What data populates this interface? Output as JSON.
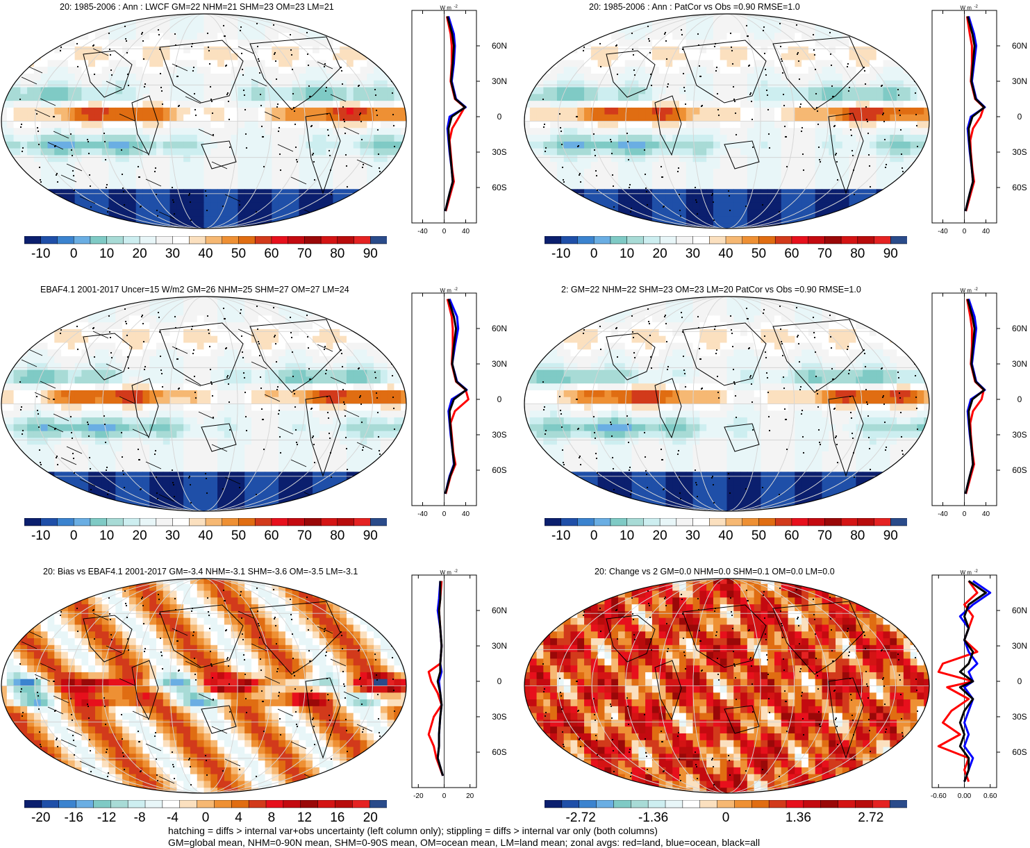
{
  "panels": [
    {
      "title": "20: 1985-2006 : Ann : LWCF GM=22 NHM=21 SHM=23 OM=23 LM=21",
      "variant": "clim",
      "hatch": true,
      "stipple": true
    },
    {
      "title": "20: 1985-2006 : Ann : PatCor vs Obs =0.90 RMSE=1.0",
      "variant": "clim",
      "hatch": false,
      "stipple": true
    },
    {
      "title": "EBAF4.1 2001-2017 Uncer=15 W/m2 GM=26 NHM=25 SHM=27 OM=27 LM=24",
      "variant": "clim",
      "hatch": true,
      "stipple": true
    },
    {
      "title": "2: GM=22 NHM=22 SHM=23 OM=23 LM=20 PatCor vs Obs =0.90 RMSE=1.0",
      "variant": "clim",
      "hatch": false,
      "stipple": true
    },
    {
      "title": "20: Bias vs EBAF4.1 2001-2017 GM=-3.4 NHM=-3.1 SHM=-3.6 OM=-3.5 LM=-3.1",
      "variant": "bias",
      "hatch": true,
      "stipple": true
    },
    {
      "title": "20: Change vs 2 GM=0.0 NHM=0.0 SHM=0.1 OM=0.0 LM=0.0",
      "variant": "change",
      "hatch": false,
      "stipple": true
    }
  ],
  "colorbars": [
    {
      "labels": [
        "-10",
        "0",
        "10",
        "20",
        "30",
        "40",
        "50",
        "60",
        "70",
        "80",
        "90"
      ]
    },
    {
      "labels": [
        "-10",
        "0",
        "10",
        "20",
        "30",
        "40",
        "50",
        "60",
        "70",
        "80",
        "90"
      ]
    },
    {
      "labels": [
        "-10",
        "0",
        "10",
        "20",
        "30",
        "40",
        "50",
        "60",
        "70",
        "80",
        "90"
      ]
    },
    {
      "labels": [
        "-10",
        "0",
        "10",
        "20",
        "30",
        "40",
        "50",
        "60",
        "70",
        "80",
        "90"
      ]
    },
    {
      "labels": [
        "-20",
        "-16",
        "-12",
        "-8",
        "-4",
        "0",
        "4",
        "8",
        "12",
        "16",
        "20"
      ]
    },
    {
      "labels": [
        "-2.72",
        "-1.36",
        "0",
        "1.36",
        "2.72"
      ]
    }
  ],
  "zonal_plots": [
    {
      "unit": "W m",
      "unit_exp": "-2",
      "xticks": [
        "-40",
        "0",
        "40"
      ],
      "xrange": [
        -60,
        60
      ],
      "lat_labels": [
        "60N",
        "30N",
        "0",
        "30S",
        "60S"
      ]
    },
    {
      "unit": "W m",
      "unit_exp": "-2",
      "xticks": [
        "-40",
        "0",
        "40"
      ],
      "xrange": [
        -60,
        60
      ],
      "lat_labels": [
        "60N",
        "30N",
        "0",
        "30S",
        "60S"
      ]
    },
    {
      "unit": "W m",
      "unit_exp": "-2",
      "xticks": [
        "-40",
        "0",
        "40"
      ],
      "xrange": [
        -60,
        60
      ],
      "lat_labels": [
        "60N",
        "30N",
        "0",
        "30S",
        "60S"
      ]
    },
    {
      "unit": "W m",
      "unit_exp": "-2",
      "xticks": [
        "-40",
        "0",
        "40"
      ],
      "xrange": [
        -60,
        60
      ],
      "lat_labels": [
        "60N",
        "30N",
        "0",
        "30S",
        "60S"
      ]
    },
    {
      "unit": "W m",
      "unit_exp": "-2",
      "xticks": [
        "-20",
        "0",
        "20"
      ],
      "xrange": [
        -25,
        25
      ],
      "lat_labels": [
        "60N",
        "30N",
        "0",
        "30S",
        "60S"
      ]
    },
    {
      "unit": "W m",
      "unit_exp": "-2",
      "xticks": [
        "-0.60",
        "0.00",
        "0.60"
      ],
      "xrange": [
        -0.75,
        0.75
      ],
      "lat_labels": [
        "60N",
        "30N",
        "0",
        "30S",
        "60S"
      ]
    }
  ],
  "chart_data": {
    "type": "heatmap",
    "zonal_mean_series": [
      {
        "panel": 0,
        "lat": [
          85,
          70,
          60,
          45,
          30,
          15,
          8,
          0,
          -10,
          -20,
          -30,
          -45,
          -55,
          -65,
          -80
        ],
        "land": [
          5,
          12,
          14,
          14,
          12,
          20,
          38,
          28,
          15,
          10,
          12,
          15,
          18,
          12,
          3
        ],
        "ocean": [
          8,
          18,
          20,
          18,
          14,
          22,
          40,
          10,
          6,
          8,
          10,
          14,
          16,
          10,
          2
        ],
        "all": [
          6,
          15,
          18,
          16,
          13,
          21,
          39,
          14,
          8,
          9,
          11,
          14,
          16,
          10,
          2
        ]
      },
      {
        "panel": 1,
        "lat": [
          85,
          70,
          60,
          45,
          30,
          15,
          8,
          0,
          -10,
          -20,
          -30,
          -45,
          -55,
          -65,
          -80
        ],
        "land": [
          5,
          10,
          14,
          14,
          12,
          20,
          36,
          30,
          16,
          11,
          12,
          15,
          18,
          12,
          3
        ],
        "ocean": [
          8,
          18,
          22,
          18,
          14,
          22,
          38,
          12,
          6,
          8,
          10,
          14,
          16,
          10,
          2
        ],
        "all": [
          6,
          15,
          19,
          16,
          13,
          21,
          37,
          15,
          8,
          9,
          11,
          14,
          16,
          10,
          2
        ]
      },
      {
        "panel": 2,
        "lat": [
          85,
          70,
          60,
          45,
          30,
          15,
          8,
          0,
          -10,
          -20,
          -30,
          -45,
          -55,
          -65,
          -80
        ],
        "land": [
          6,
          14,
          16,
          16,
          14,
          22,
          40,
          45,
          20,
          12,
          14,
          17,
          21,
          12,
          3
        ],
        "ocean": [
          10,
          24,
          26,
          20,
          15,
          24,
          42,
          14,
          8,
          10,
          12,
          16,
          18,
          10,
          2
        ],
        "all": [
          8,
          18,
          22,
          18,
          15,
          23,
          41,
          18,
          10,
          11,
          13,
          16,
          19,
          11,
          2
        ]
      },
      {
        "panel": 3,
        "lat": [
          85,
          70,
          60,
          45,
          30,
          15,
          8,
          0,
          -10,
          -20,
          -30,
          -45,
          -55,
          -65,
          -80
        ],
        "land": [
          5,
          11,
          14,
          14,
          12,
          20,
          36,
          32,
          16,
          11,
          12,
          15,
          18,
          12,
          3
        ],
        "ocean": [
          8,
          19,
          22,
          18,
          14,
          22,
          38,
          12,
          6,
          8,
          10,
          14,
          16,
          10,
          2
        ],
        "all": [
          6,
          15,
          19,
          16,
          13,
          21,
          37,
          15,
          8,
          9,
          11,
          14,
          16,
          10,
          2
        ]
      },
      {
        "panel": 4,
        "lat": [
          85,
          70,
          60,
          45,
          30,
          15,
          8,
          0,
          -10,
          -20,
          -30,
          -45,
          -55,
          -65,
          -80
        ],
        "land": [
          -2,
          -3,
          -4,
          -3,
          -2,
          -3,
          -12,
          -10,
          -5,
          -2,
          -8,
          -12,
          -8,
          -6,
          -1
        ],
        "ocean": [
          -3,
          -4,
          -5,
          -3,
          -2,
          -3,
          -2,
          -4,
          -3,
          -2,
          -3,
          -4,
          -4,
          -5,
          -1
        ],
        "all": [
          -3,
          -3,
          -4,
          -3,
          -2,
          -3,
          -3,
          -5,
          -3,
          -2,
          -3,
          -4,
          -4,
          -5,
          -1
        ]
      },
      {
        "panel": 5,
        "lat": [
          85,
          75,
          65,
          55,
          45,
          35,
          25,
          15,
          8,
          0,
          -5,
          -15,
          -25,
          -35,
          -45,
          -55,
          -65,
          -75,
          -85
        ],
        "land": [
          0.1,
          0.3,
          0.0,
          0.2,
          0.1,
          0.0,
          0.3,
          -0.5,
          -0.6,
          0.2,
          -0.4,
          0.1,
          -0.3,
          -0.5,
          -0.1,
          -0.6,
          0.1,
          0.0,
          0.1
        ],
        "ocean": [
          0.2,
          0.6,
          0.2,
          -0.1,
          0.1,
          0.0,
          0.1,
          0.3,
          0.1,
          0.2,
          0.0,
          0.2,
          0.1,
          0.0,
          0.1,
          0.0,
          0.2,
          0.1,
          0.0
        ],
        "all": [
          0.1,
          0.5,
          0.1,
          0.0,
          0.1,
          0.0,
          0.2,
          0.1,
          -0.1,
          0.2,
          -0.1,
          0.2,
          0.0,
          -0.1,
          0.0,
          -0.1,
          0.1,
          0.1,
          0.0
        ]
      }
    ],
    "colorbar_ranges": [
      [
        -15,
        95
      ],
      [
        -15,
        95
      ],
      [
        -15,
        95
      ],
      [
        -15,
        95
      ],
      [
        -22,
        22
      ],
      [
        -3.4,
        3.4
      ]
    ]
  },
  "footer": {
    "line1": "hatching = diffs > internal var+obs uncertainty (left column only); stippling = diffs > internal var only (both columns)",
    "line2": "GM=global mean, NHM=0-90N mean, SHM=0-90S mean, OM=ocean mean, LM=land mean; zonal avgs: red=land, blue=ocean, black=all"
  },
  "colors": {
    "clim_palette": [
      "#0b1f6e",
      "#1f4fa8",
      "#3b83cf",
      "#6aaee3",
      "#7fcac5",
      "#a8dbd6",
      "#cdeef0",
      "#e8f6f8",
      "#f4f4f4",
      "#ffffff",
      "#fbe0bf",
      "#f6b873",
      "#ee9034",
      "#e06d12",
      "#d23a1b",
      "#e7101c",
      "#c40a10",
      "#9a0808",
      "#d41414",
      "#b80c0c",
      "#e52222",
      "#2a4b8a"
    ],
    "bias_palette": [
      "#0b1f6e",
      "#1f4fa8",
      "#3b83cf",
      "#6aaee3",
      "#7fcac5",
      "#a8dbd6",
      "#cdeef0",
      "#e8f6f8",
      "#ffffff",
      "#fbe0bf",
      "#f6b873",
      "#ee9034",
      "#e06d12",
      "#d23a1b",
      "#e7101c",
      "#c40a10",
      "#9a0808",
      "#d41414",
      "#b80c0c",
      "#e52222",
      "#2a4b8a"
    ],
    "land": "#ff0000",
    "ocean": "#0000ff",
    "all": "#000000"
  }
}
